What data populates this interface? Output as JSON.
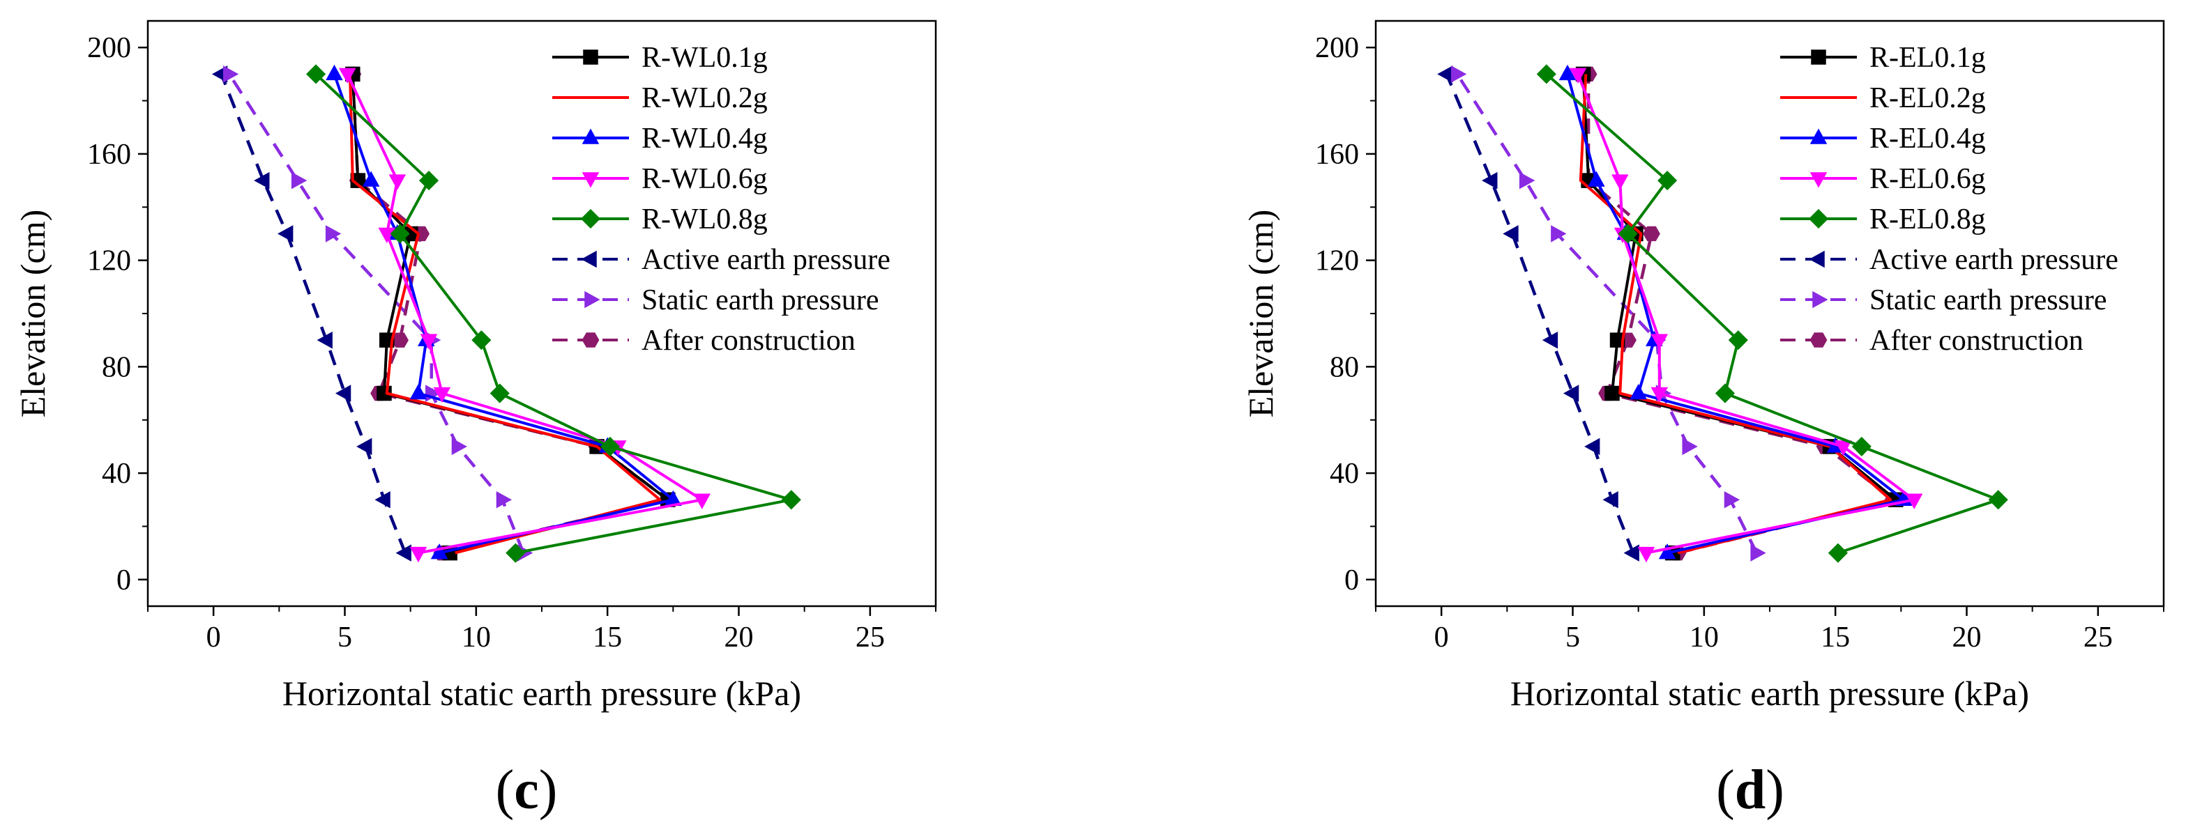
{
  "chart_data": [
    {
      "type": "line",
      "panel": "(c)",
      "panel_letter": "c",
      "xlabel": "Horizontal static earth pressure (kPa)",
      "ylabel": "Elevation (cm)",
      "xlim": [
        -2.5,
        27.5
      ],
      "ylim": [
        -10,
        210
      ],
      "xticks": [
        0,
        5,
        10,
        15,
        20,
        25
      ],
      "yticks": [
        0,
        40,
        80,
        120,
        160,
        200
      ],
      "legend_position": "top-right",
      "series": [
        {
          "name": "R-WL0.1g",
          "color": "#000000",
          "marker": "square",
          "dash": false,
          "x": [
            9.0,
            17.3,
            14.6,
            6.5,
            6.6,
            7.5,
            5.5,
            5.3
          ],
          "y": [
            10,
            30,
            50,
            70,
            90,
            130,
            150,
            190
          ]
        },
        {
          "name": "R-WL0.2g",
          "color": "#ff0000",
          "marker": "circle",
          "dash": false,
          "x": [
            9.2,
            17.0,
            14.6,
            6.6,
            6.8,
            7.8,
            5.3,
            5.2
          ],
          "y": [
            10,
            30,
            50,
            70,
            90,
            130,
            150,
            190
          ]
        },
        {
          "name": "R-WL0.4g",
          "color": "#0000ff",
          "marker": "triangle-up",
          "dash": false,
          "x": [
            8.6,
            17.5,
            15.0,
            7.8,
            8.1,
            7.0,
            6.0,
            4.6
          ],
          "y": [
            10,
            30,
            50,
            70,
            90,
            130,
            150,
            190
          ]
        },
        {
          "name": "R-WL0.6g",
          "color": "#ff00ff",
          "marker": "triangle-down",
          "dash": false,
          "x": [
            7.8,
            18.6,
            15.4,
            8.7,
            8.2,
            6.6,
            7.0,
            5.1
          ],
          "y": [
            10,
            30,
            50,
            70,
            90,
            130,
            150,
            190
          ]
        },
        {
          "name": "R-WL0.8g",
          "color": "#008000",
          "marker": "diamond",
          "dash": false,
          "x": [
            11.5,
            22.0,
            15.1,
            10.9,
            10.2,
            7.1,
            8.2,
            3.9
          ],
          "y": [
            10,
            30,
            50,
            70,
            90,
            130,
            150,
            190
          ]
        },
        {
          "name": "Active earth pressure",
          "color": "#000080",
          "marker": "triangle-left",
          "dash": true,
          "x": [
            7.3,
            6.5,
            5.8,
            5.0,
            4.3,
            2.8,
            1.9,
            0.3
          ],
          "y": [
            10,
            30,
            50,
            70,
            90,
            130,
            150,
            190
          ]
        },
        {
          "name": "Static earth pressure",
          "color": "#8a2be2",
          "marker": "triangle-right",
          "dash": true,
          "x": [
            11.8,
            11.0,
            9.3,
            8.3,
            8.3,
            4.5,
            3.2,
            0.6
          ],
          "y": [
            10,
            30,
            50,
            70,
            90,
            130,
            150,
            190
          ]
        },
        {
          "name": "After construction",
          "color": "#8b1a6b",
          "marker": "hexagon",
          "dash": true,
          "x": [
            8.7,
            17.3,
            14.6,
            6.3,
            7.1,
            7.9,
            5.5,
            5.3
          ],
          "y": [
            10,
            30,
            50,
            70,
            90,
            130,
            150,
            190
          ]
        }
      ]
    },
    {
      "type": "line",
      "panel": "(d)",
      "panel_letter": "d",
      "xlabel": "Horizontal static earth pressure (kPa)",
      "ylabel": "Elevation (cm)",
      "xlim": [
        -2.5,
        27.5
      ],
      "ylim": [
        -10,
        210
      ],
      "xticks": [
        0,
        5,
        10,
        15,
        20,
        25
      ],
      "yticks": [
        0,
        40,
        80,
        120,
        160,
        200
      ],
      "legend_position": "top-right",
      "series": [
        {
          "name": "R-EL0.1g",
          "color": "#000000",
          "marker": "square",
          "dash": false,
          "x": [
            8.8,
            17.3,
            14.8,
            6.5,
            6.7,
            7.4,
            5.6,
            5.4
          ],
          "y": [
            10,
            30,
            50,
            70,
            90,
            130,
            150,
            190
          ]
        },
        {
          "name": "R-EL0.2g",
          "color": "#ff0000",
          "marker": "circle",
          "dash": false,
          "x": [
            9.0,
            17.1,
            14.8,
            6.8,
            6.9,
            7.6,
            5.3,
            5.5
          ],
          "y": [
            10,
            30,
            50,
            70,
            90,
            130,
            150,
            190
          ]
        },
        {
          "name": "R-EL0.4g",
          "color": "#0000ff",
          "marker": "triangle-up",
          "dash": false,
          "x": [
            8.6,
            17.6,
            15.0,
            7.5,
            8.1,
            7.0,
            5.9,
            4.8
          ],
          "y": [
            10,
            30,
            50,
            70,
            90,
            130,
            150,
            190
          ]
        },
        {
          "name": "R-EL0.6g",
          "color": "#ff00ff",
          "marker": "triangle-down",
          "dash": false,
          "x": [
            7.8,
            18.0,
            15.3,
            8.3,
            8.3,
            6.9,
            6.8,
            5.2
          ],
          "y": [
            10,
            30,
            50,
            70,
            90,
            130,
            150,
            190
          ]
        },
        {
          "name": "R-EL0.8g",
          "color": "#008000",
          "marker": "diamond",
          "dash": false,
          "x": [
            15.1,
            21.2,
            16.0,
            10.8,
            11.3,
            7.1,
            8.6,
            4.0
          ],
          "y": [
            10,
            30,
            50,
            70,
            90,
            130,
            150,
            190
          ]
        },
        {
          "name": "Active earth pressure",
          "color": "#000080",
          "marker": "triangle-left",
          "dash": true,
          "x": [
            7.3,
            6.5,
            5.8,
            5.0,
            4.2,
            2.7,
            1.9,
            0.2
          ],
          "y": [
            10,
            30,
            50,
            70,
            90,
            130,
            150,
            190
          ]
        },
        {
          "name": "Static earth pressure",
          "color": "#8a2be2",
          "marker": "triangle-right",
          "dash": true,
          "x": [
            12.0,
            11.0,
            9.4,
            8.4,
            8.2,
            4.4,
            3.2,
            0.6
          ],
          "y": [
            10,
            30,
            50,
            70,
            90,
            130,
            150,
            190
          ]
        },
        {
          "name": "After construction",
          "color": "#8b1a6b",
          "marker": "hexagon",
          "dash": true,
          "x": [
            9.0,
            17.2,
            14.6,
            6.3,
            7.1,
            8.0,
            5.6,
            5.6
          ],
          "y": [
            10,
            30,
            50,
            70,
            90,
            130,
            150,
            190
          ]
        }
      ]
    }
  ]
}
